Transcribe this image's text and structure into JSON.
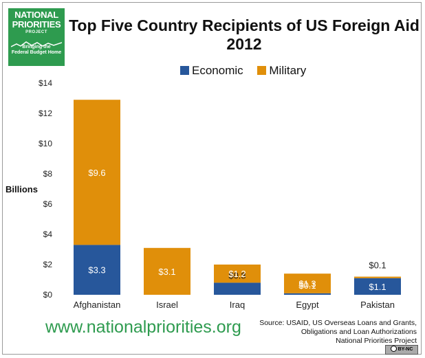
{
  "logo": {
    "line1": "NATIONAL",
    "line2": "PRIORITIES",
    "line3": "PROJECT",
    "tagline1": "Bringing the",
    "tagline2": "Federal Budget Home"
  },
  "url": "www.nationalpriorities.org",
  "source": {
    "line1": "Source: USAID, US Overseas Loans and Grants,",
    "line2": "Obligations and Loan Authorizations",
    "line3": "National Priorities Project"
  },
  "license": "BY-NC",
  "colors": {
    "economic": "#27579b",
    "military": "#e08f0a",
    "brand": "#2e9b4f"
  },
  "chart_data": {
    "type": "bar",
    "stacked": true,
    "title": "Top Five Country Recipients of US Foreign Aid 2012",
    "ylabel": "Billions",
    "xlabel": "",
    "ylim": [
      0,
      14
    ],
    "yticks": [
      0,
      2,
      4,
      6,
      8,
      10,
      12,
      14
    ],
    "ytick_labels": [
      "$0",
      "$2",
      "$4",
      "$6",
      "$8",
      "$10",
      "$12",
      "$14"
    ],
    "legend_position": "top",
    "grid": false,
    "categories": [
      "Afghanistan",
      "Israel",
      "Iraq",
      "Egypt",
      "Pakistan"
    ],
    "series": [
      {
        "name": "Economic",
        "values": [
          3.3,
          0.0,
          0.8,
          0.1,
          1.1
        ],
        "labels": [
          "$3.3",
          "",
          "$0.8",
          "",
          "$1.1"
        ]
      },
      {
        "name": "Military",
        "values": [
          9.6,
          3.1,
          1.2,
          1.3,
          0.1
        ],
        "labels": [
          "$9.6",
          "$3.1",
          "$1.2",
          "$1.3",
          "$0.1"
        ]
      }
    ],
    "annotations": [
      "$0.1"
    ]
  }
}
